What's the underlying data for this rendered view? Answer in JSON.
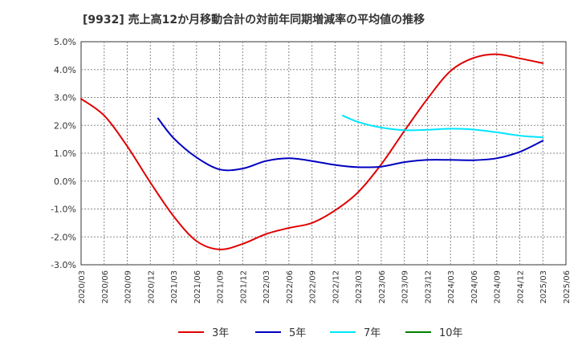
{
  "chart_data": {
    "type": "line",
    "title": "[9932]  売上高12か月移動合計の対前年同期増減率の平均値の推移",
    "xlabel": "",
    "ylabel": "",
    "ylim": [
      -3.0,
      5.0
    ],
    "yticks": [
      "5.0%",
      "4.0%",
      "3.0%",
      "2.0%",
      "1.0%",
      "0.0%",
      "-1.0%",
      "-2.0%",
      "-3.0%"
    ],
    "xticks": [
      "2020/03",
      "2020/06",
      "2020/09",
      "2020/12",
      "2021/03",
      "2021/06",
      "2021/09",
      "2021/12",
      "2022/03",
      "2022/06",
      "2022/09",
      "2022/12",
      "2023/03",
      "2023/06",
      "2023/09",
      "2023/12",
      "2024/03",
      "2024/06",
      "2024/09",
      "2024/12",
      "2025/03",
      "2025/06"
    ],
    "grid": true,
    "legend_position": "bottom",
    "series": [
      {
        "name": "3年",
        "color": "#e00000",
        "points": [
          [
            "2020/03",
            2.95
          ],
          [
            "2020/06",
            2.35
          ],
          [
            "2020/09",
            1.25
          ],
          [
            "2020/12",
            -0.05
          ],
          [
            "2021/03",
            -1.25
          ],
          [
            "2021/06",
            -2.15
          ],
          [
            "2021/09",
            -2.45
          ],
          [
            "2021/12",
            -2.25
          ],
          [
            "2022/03",
            -1.9
          ],
          [
            "2022/06",
            -1.68
          ],
          [
            "2022/09",
            -1.5
          ],
          [
            "2022/12",
            -1.05
          ],
          [
            "2023/03",
            -0.4
          ],
          [
            "2023/06",
            0.6
          ],
          [
            "2023/09",
            1.8
          ],
          [
            "2023/12",
            2.95
          ],
          [
            "2024/03",
            3.95
          ],
          [
            "2024/06",
            4.42
          ],
          [
            "2024/09",
            4.55
          ],
          [
            "2024/12",
            4.4
          ],
          [
            "2025/03",
            4.23
          ]
        ]
      },
      {
        "name": "5年",
        "color": "#0000c0",
        "points": [
          [
            "2021/01",
            2.25
          ],
          [
            "2021/03",
            1.55
          ],
          [
            "2021/06",
            0.85
          ],
          [
            "2021/09",
            0.42
          ],
          [
            "2021/12",
            0.45
          ],
          [
            "2022/03",
            0.72
          ],
          [
            "2022/06",
            0.82
          ],
          [
            "2022/09",
            0.72
          ],
          [
            "2022/12",
            0.58
          ],
          [
            "2023/03",
            0.5
          ],
          [
            "2023/06",
            0.52
          ],
          [
            "2023/09",
            0.68
          ],
          [
            "2023/12",
            0.76
          ],
          [
            "2024/03",
            0.76
          ],
          [
            "2024/06",
            0.75
          ],
          [
            "2024/09",
            0.82
          ],
          [
            "2024/12",
            1.05
          ],
          [
            "2025/03",
            1.45
          ]
        ]
      },
      {
        "name": "7年",
        "color": "#00e5ff",
        "points": [
          [
            "2023/01",
            2.35
          ],
          [
            "2023/03",
            2.12
          ],
          [
            "2023/06",
            1.92
          ],
          [
            "2023/09",
            1.83
          ],
          [
            "2023/12",
            1.84
          ],
          [
            "2024/03",
            1.88
          ],
          [
            "2024/06",
            1.85
          ],
          [
            "2024/09",
            1.75
          ],
          [
            "2024/12",
            1.63
          ],
          [
            "2025/03",
            1.57
          ]
        ]
      },
      {
        "name": "10年",
        "color": "#008000",
        "points": []
      }
    ]
  }
}
